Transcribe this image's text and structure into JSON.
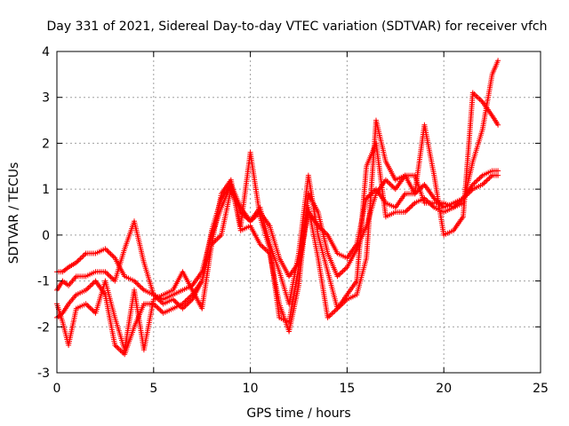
{
  "chart_data": {
    "type": "scatter",
    "title": "Day 331 of 2021, Sidereal Day-to-day VTEC variation (SDTVAR) for receiver vfch",
    "xlabel": "GPS time / hours",
    "ylabel": "SDTVAR / TECUs",
    "xlim": [
      0,
      25
    ],
    "ylim": [
      -3,
      4
    ],
    "xticks": [
      "0",
      "5",
      "10",
      "15",
      "20",
      "25"
    ],
    "yticks": [
      "-3",
      "-2",
      "-1",
      "0",
      "1",
      "2",
      "3",
      "4"
    ],
    "grid": true,
    "marker": "+",
    "color": "#ff0000",
    "series": [
      {
        "x": [
          0,
          0.3,
          0.6,
          1.0,
          1.5,
          2.0,
          2.5,
          3.0,
          3.5,
          4.0,
          4.5,
          5.0,
          5.5,
          6.0,
          6.5,
          7.0,
          7.5,
          8.0,
          8.5,
          9.0,
          9.5,
          10.0,
          10.5,
          11.0,
          11.5,
          12.0,
          12.5,
          13.0,
          13.5,
          14.0,
          14.5,
          15.0,
          15.5,
          16.0,
          16.5,
          17.0,
          17.5,
          18.0,
          18.5,
          19.0,
          19.5,
          20.0,
          20.5,
          21.0,
          21.5,
          22.0,
          22.5,
          22.8
        ],
        "y": [
          -0.8,
          -0.8,
          -0.7,
          -0.6,
          -0.4,
          -0.4,
          -0.3,
          -0.5,
          -0.9,
          -1.0,
          -1.2,
          -1.3,
          -1.4,
          -1.3,
          -1.2,
          -1.1,
          -0.8,
          0.0,
          0.6,
          1.1,
          0.6,
          0.3,
          0.5,
          0.2,
          -0.5,
          -0.9,
          -0.6,
          0.5,
          0.2,
          0.0,
          -0.4,
          -0.5,
          -0.2,
          0.8,
          1.0,
          0.7,
          0.6,
          0.9,
          0.9,
          1.1,
          0.8,
          0.6,
          0.7,
          0.8,
          1.0,
          1.1,
          1.3,
          1.3
        ]
      },
      {
        "x": [
          0,
          0.3,
          0.6,
          1.0,
          1.5,
          2.0,
          2.5,
          3.0,
          3.5,
          4.0,
          4.5,
          5.0,
          5.5,
          6.0,
          6.5,
          7.0,
          7.5,
          8.0,
          8.5,
          9.0,
          9.5,
          10.0,
          10.5,
          11.0,
          11.5,
          12.0,
          12.5,
          13.0,
          13.5,
          14.0,
          14.5,
          15.0,
          15.5,
          16.0,
          16.5,
          17.0,
          17.5,
          18.0,
          18.5,
          19.0,
          19.5,
          20.0,
          20.5,
          21.0,
          21.5,
          22.0,
          22.5,
          22.8
        ],
        "y": [
          -1.2,
          -1.0,
          -1.1,
          -0.9,
          -0.9,
          -0.8,
          -0.8,
          -1.0,
          -0.3,
          0.3,
          -0.6,
          -1.3,
          -1.5,
          -1.4,
          -1.6,
          -1.4,
          -1.0,
          -0.2,
          0.9,
          1.2,
          0.1,
          0.2,
          -0.2,
          -0.4,
          -1.5,
          -2.1,
          -1.1,
          0.9,
          0.5,
          -0.4,
          -0.9,
          -0.7,
          -0.3,
          0.2,
          0.9,
          1.2,
          1.0,
          1.3,
          1.3,
          0.7,
          0.7,
          0.7,
          0.6,
          0.8,
          1.1,
          1.3,
          1.4,
          1.4
        ]
      },
      {
        "x": [
          0,
          0.3,
          0.6,
          1.0,
          1.5,
          2.0,
          2.5,
          3.0,
          3.5,
          4.0,
          4.5,
          5.0,
          5.5,
          6.0,
          6.5,
          7.0,
          7.5,
          8.0,
          8.5,
          9.0,
          9.5,
          10.0,
          10.5,
          11.0,
          11.5,
          12.0,
          12.5,
          13.0,
          13.5,
          14.0,
          14.5,
          15.0,
          15.5,
          16.0,
          16.5,
          17.0,
          17.5,
          18.0,
          18.5,
          19.0,
          19.5,
          20.0,
          20.5,
          21.0,
          21.5,
          22.0,
          22.5,
          22.8
        ],
        "y": [
          -1.5,
          -1.9,
          -2.4,
          -1.6,
          -1.5,
          -1.7,
          -1.0,
          -1.8,
          -2.5,
          -1.2,
          -2.5,
          -1.4,
          -1.3,
          -1.2,
          -0.8,
          -1.2,
          -1.6,
          -0.2,
          0.0,
          1.0,
          0.5,
          0.3,
          0.6,
          -0.2,
          -0.8,
          -1.5,
          -0.4,
          1.3,
          0.0,
          -0.8,
          -1.6,
          -1.4,
          -1.3,
          -0.5,
          2.5,
          1.6,
          1.2,
          1.3,
          0.9,
          2.4,
          1.3,
          0.0,
          0.1,
          0.4,
          3.1,
          2.9,
          2.6,
          2.4
        ]
      },
      {
        "x": [
          0,
          0.3,
          0.6,
          1.0,
          1.5,
          2.0,
          2.5,
          3.0,
          3.5,
          4.0,
          4.5,
          5.0,
          5.5,
          6.0,
          6.5,
          7.0,
          7.5,
          8.0,
          8.5,
          9.0,
          9.5,
          10.0,
          10.5,
          11.0,
          11.5,
          12.0,
          12.5,
          13.0,
          13.5,
          14.0,
          14.5,
          15.0,
          15.5,
          16.0,
          16.5,
          17.0,
          17.5,
          18.0,
          18.5,
          19.0,
          19.5,
          20.0,
          20.5,
          21.0,
          21.5,
          22.0,
          22.5,
          22.8
        ],
        "y": [
          -1.8,
          -1.7,
          -1.5,
          -1.3,
          -1.2,
          -1.0,
          -1.3,
          -2.4,
          -2.6,
          -2.0,
          -1.5,
          -1.5,
          -1.7,
          -1.6,
          -1.5,
          -1.3,
          -1.0,
          0.1,
          0.8,
          1.1,
          0.2,
          1.8,
          0.4,
          -0.3,
          -1.8,
          -1.9,
          -0.7,
          0.6,
          -0.5,
          -1.8,
          -1.6,
          -1.3,
          -1.0,
          1.5,
          2.0,
          0.4,
          0.5,
          0.5,
          0.7,
          0.8,
          0.6,
          0.5,
          0.6,
          0.7,
          1.6,
          2.3,
          3.5,
          3.8
        ]
      }
    ]
  }
}
